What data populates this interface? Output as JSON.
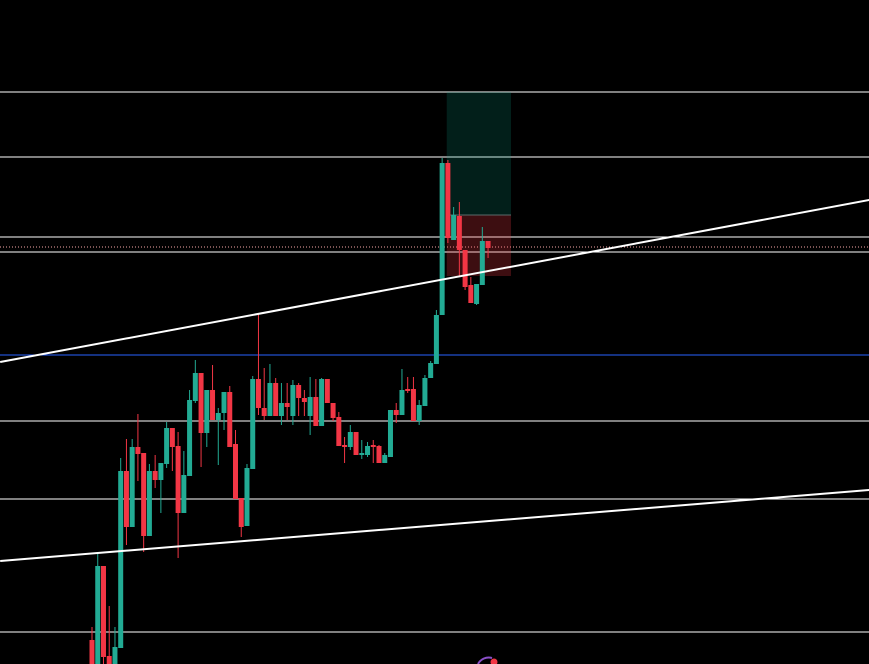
{
  "chart_data": {
    "type": "candlestick",
    "title": "",
    "xlabel": "",
    "ylabel": "",
    "grid": false,
    "background": "#000000",
    "colors": {
      "up": "#22ab94",
      "down": "#f23645",
      "level_line": "#ffffff",
      "blue_line": "#2962ff",
      "dotted_line": "#f7a8a8",
      "target_zone": "rgba(8,153,129,0.2)",
      "stop_zone": "rgba(242,54,69,0.25)"
    },
    "candles_ohlc": [
      [
        60,
        73,
        36,
        36
      ],
      [
        36,
        147,
        36,
        134
      ],
      [
        134,
        134,
        36,
        43
      ],
      [
        44,
        94,
        36,
        36
      ],
      [
        36,
        73,
        36,
        53
      ],
      [
        52,
        242,
        52,
        229
      ],
      [
        229,
        261,
        155,
        173
      ],
      [
        173,
        261,
        173,
        253
      ],
      [
        253,
        286,
        219,
        246
      ],
      [
        247,
        247,
        148,
        164
      ],
      [
        164,
        236,
        164,
        229
      ],
      [
        229,
        245,
        212,
        220
      ],
      [
        220,
        237,
        187,
        237
      ],
      [
        236,
        278,
        232,
        272
      ],
      [
        272,
        272,
        229,
        253
      ],
      [
        254,
        268,
        142,
        187
      ],
      [
        187,
        249,
        187,
        225
      ],
      [
        224,
        310,
        224,
        300
      ],
      [
        299,
        340,
        297,
        327
      ],
      [
        327,
        327,
        233,
        267
      ],
      [
        267,
        310,
        253,
        310
      ],
      [
        310,
        335,
        280,
        280
      ],
      [
        280,
        292,
        235,
        287
      ],
      [
        287,
        308,
        270,
        308
      ],
      [
        308,
        314,
        253,
        253
      ],
      [
        256,
        270,
        201,
        201
      ],
      [
        202,
        202,
        163,
        173
      ],
      [
        174,
        236,
        174,
        232
      ],
      [
        231,
        324,
        231,
        321
      ],
      [
        321,
        387,
        285,
        292
      ],
      [
        292,
        332,
        280,
        284
      ],
      [
        284,
        336,
        284,
        317
      ],
      [
        317,
        322,
        284,
        284
      ],
      [
        284,
        317,
        275,
        297
      ],
      [
        297,
        317,
        280,
        293
      ],
      [
        284,
        320,
        275,
        315
      ],
      [
        315,
        317,
        284,
        302
      ],
      [
        302,
        310,
        284,
        298
      ],
      [
        284,
        323,
        265,
        303
      ],
      [
        303,
        321,
        274,
        274
      ],
      [
        274,
        322,
        274,
        321
      ],
      [
        321,
        321,
        297,
        297
      ],
      [
        297,
        297,
        279,
        282
      ],
      [
        283,
        288,
        254,
        254
      ],
      [
        255,
        263,
        237,
        253
      ],
      [
        253,
        275,
        250,
        268
      ],
      [
        268,
        268,
        245,
        245
      ],
      [
        245,
        260,
        241,
        247
      ],
      [
        245,
        258,
        243,
        254
      ],
      [
        255,
        260,
        237,
        253
      ],
      [
        254,
        255,
        237,
        237
      ],
      [
        237,
        247,
        237,
        245
      ],
      [
        243,
        290,
        243,
        290
      ],
      [
        290,
        297,
        277,
        285
      ],
      [
        285,
        331,
        285,
        310
      ],
      [
        311,
        323,
        307,
        309
      ],
      [
        311,
        323,
        279,
        279
      ],
      [
        279,
        300,
        275,
        295
      ],
      [
        294,
        325,
        294,
        322
      ],
      [
        322,
        339,
        322,
        337
      ],
      [
        336,
        390,
        336,
        385
      ],
      [
        385,
        542,
        385,
        537
      ],
      [
        537,
        540,
        457,
        462
      ],
      [
        460,
        493,
        460,
        485
      ],
      [
        484,
        498,
        423,
        450
      ],
      [
        450,
        450,
        410,
        413
      ],
      [
        415,
        423,
        397,
        397
      ],
      [
        396,
        416,
        395,
        416
      ],
      [
        415,
        473,
        415,
        459
      ],
      [
        459,
        459,
        442,
        452
      ]
    ],
    "horizontal_levels": [
      608,
      543,
      463,
      448,
      279,
      201,
      68
    ],
    "blue_level": 345,
    "dotted_level": 453,
    "trendlines": [
      {
        "from": [
          -16,
          338
        ],
        "to": [
          135.4,
          500
        ]
      },
      {
        "from": [
          -16,
          139
        ],
        "to": [
          135.4,
          210
        ]
      }
    ],
    "position": {
      "start_bar": 61.8,
      "end_bar": 73,
      "entry": 485,
      "target": 608,
      "stop": 424
    }
  }
}
